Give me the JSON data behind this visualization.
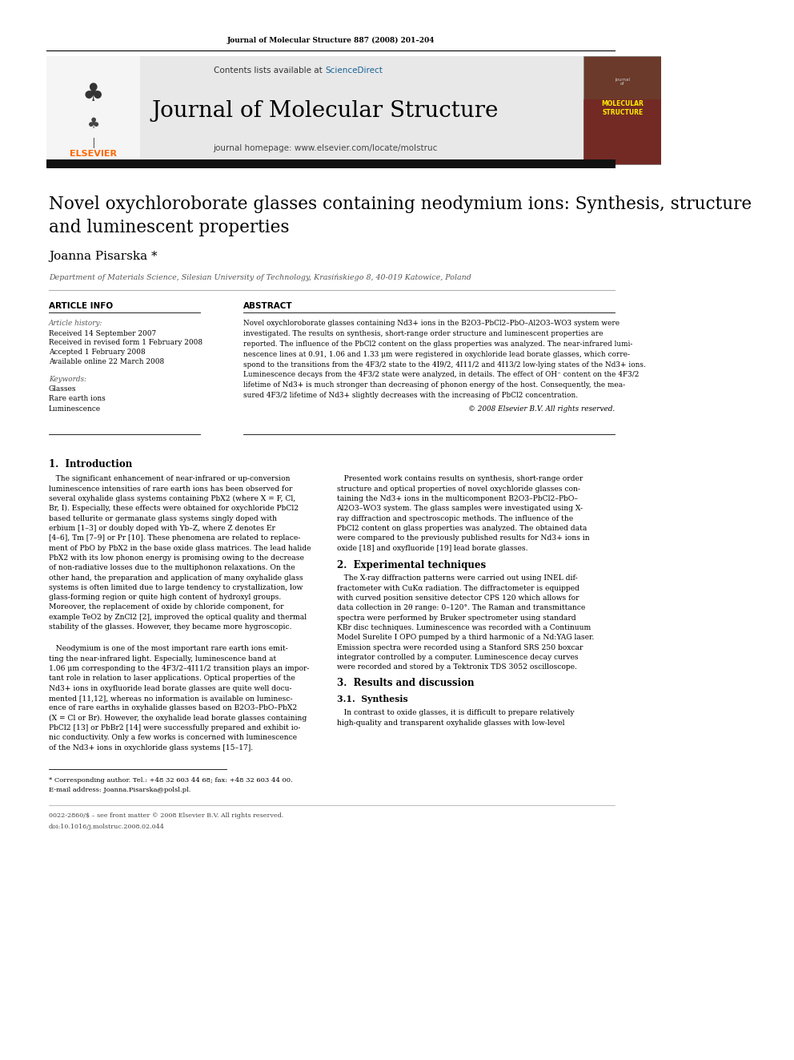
{
  "page_width": 9.92,
  "page_height": 13.23,
  "background_color": "#ffffff",
  "header_citation": "Journal of Molecular Structure 887 (2008) 201–204",
  "journal_name": "Journal of Molecular Structure",
  "contents_line": "Contents lists available at ScienceDirect",
  "sciencedirect_color": "#1a6496",
  "homepage_line": "journal homepage: www.elsevier.com/locate/molstruc",
  "article_title_line1": "Novel oxychloroborate glasses containing neodymium ions: Synthesis, structure",
  "article_title_line2": "and luminescent properties",
  "author": "Joanna Pisarska *",
  "affiliation": "Department of Materials Science, Silesian University of Technology, Krasińskiego 8, 40-019 Katowice, Poland",
  "article_info_header": "ARTICLE INFO",
  "abstract_header": "ABSTRACT",
  "article_history_label": "Article history:",
  "received1": "Received 14 September 2007",
  "received2": "Received in revised form 1 February 2008",
  "accepted": "Accepted 1 February 2008",
  "available": "Available online 22 March 2008",
  "keywords_label": "Keywords:",
  "keyword1": "Glasses",
  "keyword2": "Rare earth ions",
  "keyword3": "Luminescence",
  "copyright": "© 2008 Elsevier B.V. All rights reserved.",
  "section1_header": "1.  Introduction",
  "section2_header": "2.  Experimental techniques",
  "section3_header": "3.  Results and discussion",
  "section31_header": "3.1.  Synthesis",
  "footnote_star": "* Corresponding author. Tel.: +48 32 603 44 68; fax: +48 32 603 44 00.",
  "footnote_email": "E-mail address: Joanna.Pisarska@polsl.pl.",
  "footer_issn": "0022-2860/$ – see front matter © 2008 Elsevier B.V. All rights reserved.",
  "footer_doi": "doi:10.1016/j.molstruc.2008.02.044",
  "elsevier_color": "#ff6600",
  "dark_bar_color": "#1a1a1a",
  "link_blue": "#1a6496",
  "abstract_lines": [
    "Novel oxychloroborate glasses containing Nd3+ ions in the B2O3–PbCl2–PbO–Al2O3–WO3 system were",
    "investigated. The results on synthesis, short-range order structure and luminescent properties are",
    "reported. The influence of the PbCl2 content on the glass properties was analyzed. The near-infrared lumi-",
    "nescence lines at 0.91, 1.06 and 1.33 μm were registered in oxychloride lead borate glasses, which corre-",
    "spond to the transitions from the 4F3/2 state to the 4I9/2, 4I11/2 and 4I13/2 low-lying states of the Nd3+ ions.",
    "Luminescence decays from the 4F3/2 state were analyzed, in details. The effect of OH⁻ content on the 4F3/2",
    "lifetime of Nd3+ is much stronger than decreasing of phonon energy of the host. Consequently, the mea-",
    "sured 4F3/2 lifetime of Nd3+ slightly decreases with the increasing of PbCl2 concentration."
  ],
  "intro_col1_lines": [
    "   The significant enhancement of near-infrared or up-conversion",
    "luminescence intensities of rare earth ions has been observed for",
    "several oxyhalide glass systems containing PbX2 (where X = F, Cl,",
    "Br, I). Especially, these effects were obtained for oxychloride PbCl2",
    "based tellurite or germanate glass systems singly doped with",
    "erbium [1–3] or doubly doped with Yb–Z, where Z denotes Er",
    "[4–6], Tm [7–9] or Pr [10]. These phenomena are related to replace-",
    "ment of PbO by PbX2 in the base oxide glass matrices. The lead halide",
    "PbX2 with its low phonon energy is promising owing to the decrease",
    "of non-radiative losses due to the multiphonon relaxations. On the",
    "other hand, the preparation and application of many oxyhalide glass",
    "systems is often limited due to large tendency to crystallization, low",
    "glass-forming region or quite high content of hydroxyl groups.",
    "Moreover, the replacement of oxide by chloride component, for",
    "example TeO2 by ZnCl2 [2], improved the optical quality and thermal",
    "stability of the glasses. However, they became more hygroscopic."
  ],
  "intro_col1_p2_lines": [
    "   Neodymium is one of the most important rare earth ions emit-",
    "ting the near-infrared light. Especially, luminescence band at",
    "1.06 μm corresponding to the 4F3/2–4I11/2 transition plays an impor-",
    "tant role in relation to laser applications. Optical properties of the",
    "Nd3+ ions in oxyfluoride lead borate glasses are quite well docu-",
    "mented [11,12], whereas no information is available on luminesc-",
    "ence of rare earths in oxyhalide glasses based on B2O3–PbO–PbX2",
    "(X = Cl or Br). However, the oxyhalide lead borate glasses containing",
    "PbCl2 [13] or PbBr2 [14] were successfully prepared and exhibit io-",
    "nic conductivity. Only a few works is concerned with luminescence",
    "of the Nd3+ ions in oxychloride glass systems [15–17]."
  ],
  "intro_col2_lines": [
    "   Presented work contains results on synthesis, short-range order",
    "structure and optical properties of novel oxychloride glasses con-",
    "taining the Nd3+ ions in the multicomponent B2O3–PbCl2–PbO–",
    "Al2O3–WO3 system. The glass samples were investigated using X-",
    "ray diffraction and spectroscopic methods. The influence of the",
    "PbCl2 content on glass properties was analyzed. The obtained data",
    "were compared to the previously published results for Nd3+ ions in",
    "oxide [18] and oxyfluoride [19] lead borate glasses."
  ],
  "exp_lines": [
    "   The X-ray diffraction patterns were carried out using INEL dif-",
    "fractometer with CuKα radiation. The diffractometer is equipped",
    "with curved position sensitive detector CPS 120 which allows for",
    "data collection in 2θ range: 0–120°. The Raman and transmittance",
    "spectra were performed by Bruker spectrometer using standard",
    "KBr disc techniques. Luminescence was recorded with a Continuum",
    "Model Surelite I OPO pumped by a third harmonic of a Nd:YAG laser.",
    "Emission spectra were recorded using a Stanford SRS 250 boxcar",
    "integrator controlled by a computer. Luminescence decay curves",
    "were recorded and stored by a Tektronix TDS 3052 oscilloscope."
  ],
  "synthesis_lines": [
    "   In contrast to oxide glasses, it is difficult to prepare relatively",
    "high-quality and transparent oxyhalide glasses with low-level"
  ]
}
